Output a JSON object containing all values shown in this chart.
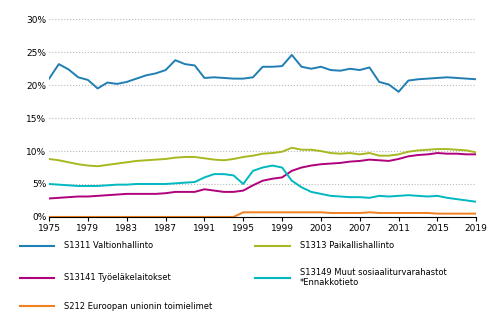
{
  "years": [
    1975,
    1976,
    1977,
    1978,
    1979,
    1980,
    1981,
    1982,
    1983,
    1984,
    1985,
    1986,
    1987,
    1988,
    1989,
    1990,
    1991,
    1992,
    1993,
    1994,
    1995,
    1996,
    1997,
    1998,
    1999,
    2000,
    2001,
    2002,
    2003,
    2004,
    2005,
    2006,
    2007,
    2008,
    2009,
    2010,
    2011,
    2012,
    2013,
    2014,
    2015,
    2016,
    2017,
    2018,
    2019
  ],
  "S1311": [
    21.0,
    23.2,
    22.4,
    21.2,
    20.8,
    19.5,
    20.4,
    20.2,
    20.5,
    21.0,
    21.5,
    21.8,
    22.3,
    23.8,
    23.2,
    23.0,
    21.1,
    21.2,
    21.1,
    21.0,
    21.0,
    21.2,
    22.8,
    22.8,
    22.9,
    24.6,
    22.8,
    22.5,
    22.8,
    22.3,
    22.2,
    22.5,
    22.3,
    22.7,
    20.5,
    20.1,
    19.0,
    20.7,
    20.9,
    21.0,
    21.1,
    21.2,
    21.1,
    21.0,
    20.9
  ],
  "S1313": [
    8.8,
    8.6,
    8.3,
    8.0,
    7.8,
    7.7,
    7.9,
    8.1,
    8.3,
    8.5,
    8.6,
    8.7,
    8.8,
    9.0,
    9.1,
    9.1,
    8.9,
    8.7,
    8.6,
    8.8,
    9.1,
    9.3,
    9.6,
    9.7,
    9.9,
    10.5,
    10.2,
    10.2,
    10.0,
    9.7,
    9.6,
    9.7,
    9.5,
    9.7,
    9.3,
    9.3,
    9.5,
    9.9,
    10.1,
    10.2,
    10.3,
    10.3,
    10.2,
    10.1,
    9.8
  ],
  "S13141": [
    2.8,
    2.9,
    3.0,
    3.1,
    3.1,
    3.2,
    3.3,
    3.4,
    3.5,
    3.5,
    3.5,
    3.5,
    3.6,
    3.8,
    3.8,
    3.8,
    4.2,
    4.0,
    3.8,
    3.8,
    4.0,
    4.8,
    5.5,
    5.8,
    6.0,
    7.0,
    7.5,
    7.8,
    8.0,
    8.1,
    8.2,
    8.4,
    8.5,
    8.7,
    8.6,
    8.5,
    8.8,
    9.2,
    9.4,
    9.5,
    9.7,
    9.6,
    9.6,
    9.5,
    9.5
  ],
  "S13149": [
    5.0,
    4.9,
    4.8,
    4.7,
    4.7,
    4.7,
    4.8,
    4.9,
    4.9,
    5.0,
    5.0,
    5.0,
    5.0,
    5.1,
    5.2,
    5.3,
    6.0,
    6.5,
    6.5,
    6.3,
    5.0,
    7.0,
    7.5,
    7.8,
    7.5,
    5.5,
    4.5,
    3.8,
    3.5,
    3.2,
    3.1,
    3.0,
    3.0,
    2.9,
    3.2,
    3.1,
    3.2,
    3.3,
    3.2,
    3.1,
    3.2,
    2.9,
    2.7,
    2.5,
    2.3
  ],
  "S212": [
    0.0,
    0.0,
    0.0,
    0.0,
    0.0,
    0.0,
    0.0,
    0.0,
    0.0,
    0.0,
    0.0,
    0.0,
    0.0,
    0.0,
    0.0,
    0.0,
    0.0,
    0.0,
    0.0,
    0.0,
    0.7,
    0.7,
    0.7,
    0.7,
    0.7,
    0.7,
    0.7,
    0.7,
    0.7,
    0.6,
    0.6,
    0.6,
    0.6,
    0.7,
    0.6,
    0.6,
    0.6,
    0.6,
    0.6,
    0.6,
    0.5,
    0.5,
    0.5,
    0.5,
    0.5
  ],
  "colors": {
    "S1311": "#1f7eb4",
    "S1313": "#a8b820",
    "S13141": "#b0007c",
    "S13149": "#00b8c0",
    "S212": "#f08020"
  },
  "legend_labels": {
    "S1311": "S1311 Valtionhallinto",
    "S1313": "S1313 Paikallishallinto",
    "S13141": "S13141 Työeläkelaitokset",
    "S13149": "S13149 Muut sosiaaliturvarahastot",
    "S212": "S212 Euroopan unionin toimielimet"
  },
  "xticks": [
    1975,
    1979,
    1983,
    1987,
    1991,
    1995,
    1999,
    2003,
    2007,
    2011,
    2015,
    2019
  ],
  "yticks": [
    0,
    5,
    10,
    15,
    20,
    25,
    30
  ],
  "ylim": [
    0,
    31
  ],
  "xlim": [
    1975,
    2019
  ],
  "note": "*Ennakkotieto",
  "background": "#ffffff",
  "grid_color": "#b8b8b8"
}
